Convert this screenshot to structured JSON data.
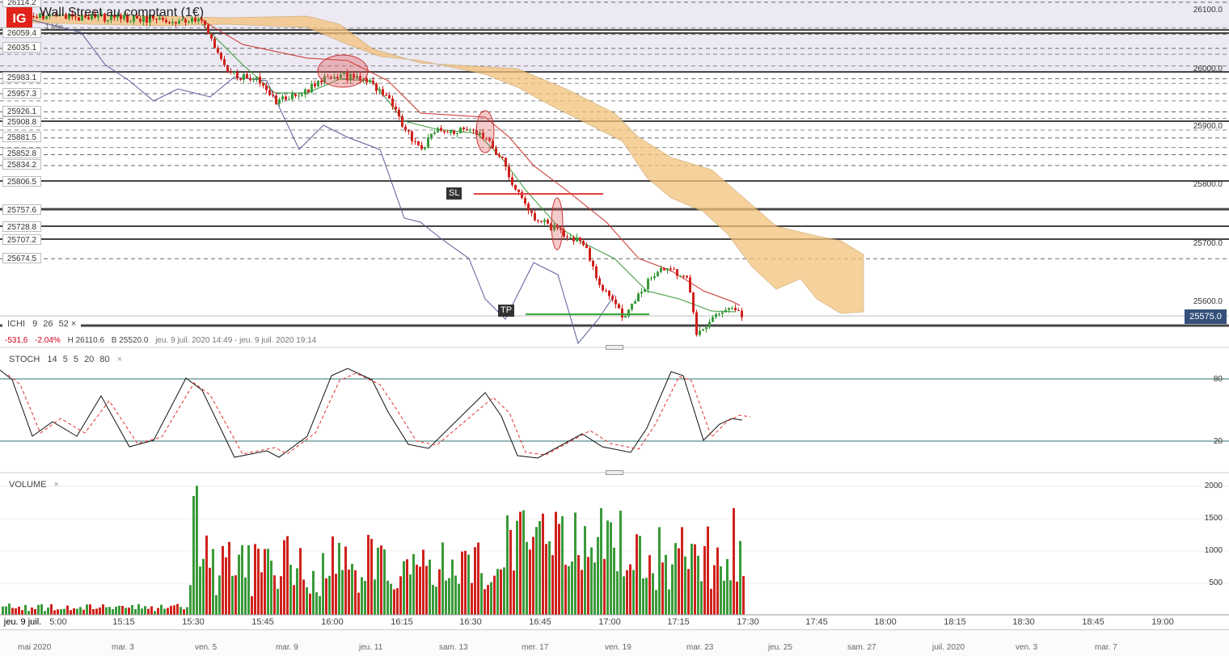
{
  "app": {
    "logo_text": "IG",
    "title": "Wall Street au comptant (1€)",
    "subtitle": "1 Min"
  },
  "price_panel": {
    "left_levels": [
      "26114.2",
      "26059.4",
      "26035.1",
      "25983.1",
      "25957.3",
      "25926.1",
      "25908.8",
      "25881.5",
      "25852.8",
      "25834.2",
      "25806.5",
      "25757.6",
      "25728.8",
      "25707.2",
      "25674.5"
    ],
    "right_axis": [
      "26100.0",
      "26000.0",
      "25900.0",
      "25800.0",
      "25700.0",
      "25600.0"
    ],
    "current_price": "25575.0",
    "annotations": {
      "sl": "SL",
      "tp": "TP"
    },
    "ichimoku": {
      "label": "ICHI",
      "params": [
        "9",
        "26",
        "52"
      ]
    },
    "ohlc": {
      "change": "-531.6",
      "change_pct": "-2.04%",
      "high": "H 26110.6",
      "bid": "B 25520.0",
      "range": "jeu. 9 juil. 2020 14:49 - jeu. 9 juil. 2020 19:14"
    },
    "colors": {
      "up": "#3a9a3a",
      "down": "#d0211c",
      "cloud": "#f5c27a",
      "line_blue": "#5b5b9a",
      "line_red": "#c9302c",
      "line_green": "#3a9a3a"
    }
  },
  "stoch_panel": {
    "label": "STOCH",
    "params": [
      "14",
      "5",
      "5",
      "20",
      "80"
    ],
    "levels": [
      "80",
      "20"
    ]
  },
  "volume_panel": {
    "label": "VOLUME",
    "axis": [
      "2000",
      "1500",
      "1000",
      "500"
    ]
  },
  "time_axis": [
    "jeu. 9 juil.",
    "5:00",
    "15:15",
    "15:30",
    "15:45",
    "16:00",
    "16:15",
    "16:30",
    "16:45",
    "17:00",
    "17:15",
    "17:30",
    "17:45",
    "18:00",
    "18:15",
    "18:30",
    "18:45",
    "19:00"
  ],
  "navigator_labels": [
    "mai 2020",
    "mar. 3",
    "ven. 5",
    "mar. 9",
    "jeu. 11",
    "sam. 13",
    "mer. 17",
    "ven. 19",
    "mar. 23",
    "jeu. 25",
    "sam. 27",
    "juil. 2020",
    "ven. 3",
    "mar. 7"
  ],
  "close_symbol": "×"
}
